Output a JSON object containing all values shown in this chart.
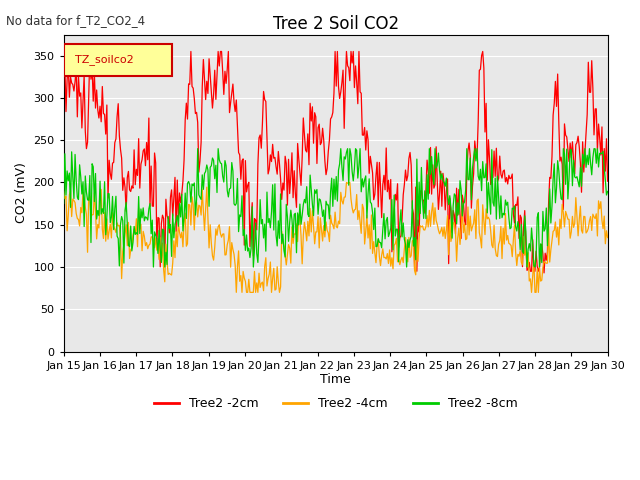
{
  "title": "Tree 2 Soil CO2",
  "subtitle": "No data for f_T2_CO2_4",
  "ylabel": "CO2 (mV)",
  "xlabel": "Time",
  "legend_label": "TZ_soilco2",
  "ylim": [
    0,
    375
  ],
  "yticks": [
    0,
    50,
    100,
    150,
    200,
    250,
    300,
    350
  ],
  "x_tick_labels": [
    "Jan 15",
    "Jan 16",
    "Jan 17",
    "Jan 18",
    "Jan 19",
    "Jan 20",
    "Jan 21",
    "Jan 22",
    "Jan 23",
    "Jan 24",
    "Jan 25",
    "Jan 26",
    "Jan 27",
    "Jan 28",
    "Jan 29",
    "Jan 30"
  ],
  "series_labels": [
    "Tree2 -2cm",
    "Tree2 -4cm",
    "Tree2 -8cm"
  ],
  "series_colors": [
    "#ff0000",
    "#ffa500",
    "#00cc00"
  ],
  "background_color": "#ffffff",
  "plot_bg_color": "#e8e8e8",
  "grid_color": "#ffffff",
  "n_points": 480
}
